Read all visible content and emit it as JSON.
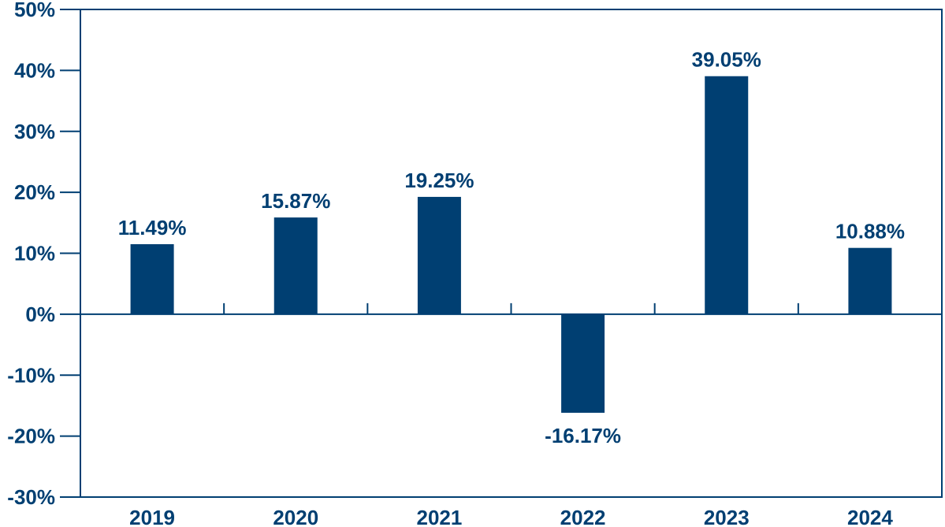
{
  "colors": {
    "bar": "#003f72",
    "axis": "#003f72",
    "text": "#003f72"
  },
  "chart_data": {
    "type": "bar",
    "title": "",
    "xlabel": "",
    "ylabel": "",
    "categories": [
      "2019",
      "2020",
      "2021",
      "2022",
      "2023",
      "2024"
    ],
    "values": [
      11.49,
      15.87,
      19.25,
      -16.17,
      39.05,
      10.88
    ],
    "data_labels": [
      "11.49%",
      "15.87%",
      "19.25%",
      "-16.17%",
      "39.05%",
      "10.88%"
    ],
    "ylim": [
      -30,
      50
    ],
    "yticks": [
      50,
      40,
      30,
      20,
      10,
      0,
      -10,
      -20,
      -30
    ],
    "ytick_labels": [
      "50%",
      "40%",
      "30%",
      "20%",
      "10%",
      "0%",
      "-10%",
      "-20%",
      "-30%"
    ],
    "grid": false,
    "legend": "none"
  }
}
